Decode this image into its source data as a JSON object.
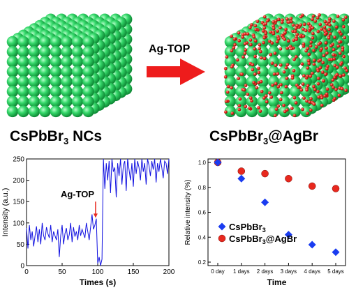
{
  "scheme": {
    "left_label_main": "CsPbBr",
    "left_label_sub": "3",
    "left_label_tail": " NCs",
    "right_label_main": "CsPbBr",
    "right_label_sub": "3",
    "right_label_tail": "@AgBr",
    "arrow_label": "Ag-TOP",
    "colors": {
      "sphere": "#35d86a",
      "sphere_dark": "#0f8a36",
      "red_dot": "#e8281e",
      "arrow": "#ee1c1c"
    }
  },
  "chart_data": [
    {
      "type": "line",
      "title": "",
      "xlabel": "Times (s)",
      "ylabel": "Intensity (a.u.)",
      "xlim": [
        0,
        200
      ],
      "ylim": [
        0,
        250
      ],
      "xticks": [
        0,
        50,
        100,
        150,
        200
      ],
      "yticks": [
        0,
        50,
        100,
        150,
        200,
        250
      ],
      "series_color": "#1010e0",
      "annotation": {
        "text": "Ag-TOP",
        "x": 97,
        "color": "#e8281e"
      },
      "x": [
        0,
        2,
        4,
        6,
        8,
        10,
        12,
        14,
        16,
        18,
        20,
        22,
        24,
        26,
        28,
        30,
        32,
        34,
        36,
        38,
        40,
        42,
        44,
        46,
        48,
        50,
        52,
        54,
        56,
        58,
        60,
        62,
        64,
        66,
        68,
        70,
        72,
        74,
        76,
        78,
        80,
        82,
        84,
        86,
        88,
        90,
        92,
        94,
        96,
        98,
        100,
        102,
        104,
        106,
        108,
        110,
        112,
        114,
        116,
        118,
        120,
        122,
        124,
        126,
        128,
        130,
        132,
        134,
        136,
        138,
        140,
        142,
        144,
        146,
        148,
        150,
        152,
        154,
        156,
        158,
        160,
        162,
        164,
        166,
        168,
        170,
        172,
        174,
        176,
        178,
        180,
        182,
        184,
        186,
        188,
        190,
        192,
        194,
        196,
        198,
        200
      ],
      "y": [
        88,
        40,
        95,
        60,
        80,
        45,
        70,
        92,
        55,
        85,
        50,
        100,
        70,
        60,
        90,
        75,
        65,
        95,
        55,
        80,
        70,
        60,
        85,
        20,
        70,
        95,
        50,
        75,
        88,
        60,
        72,
        100,
        55,
        90,
        68,
        80,
        60,
        95,
        70,
        85,
        75,
        65,
        100,
        80,
        60,
        90,
        120,
        85,
        95,
        110,
        5,
        20,
        0,
        15,
        250,
        180,
        240,
        200,
        245,
        170,
        250,
        220,
        230,
        160,
        240,
        210,
        250,
        190,
        235,
        245,
        175,
        250,
        225,
        200,
        240,
        185,
        250,
        215,
        245,
        230,
        200,
        250,
        220,
        240,
        190,
        250,
        235,
        210,
        245,
        225,
        250,
        195,
        240,
        220,
        250,
        230,
        205,
        245,
        240,
        215,
        250
      ]
    },
    {
      "type": "scatter",
      "title": "",
      "xlabel": "Time",
      "ylabel": "Relative intensity (%)",
      "categories": [
        "0 day",
        "1 days",
        "2 days",
        "3 days",
        "4 days",
        "5 days"
      ],
      "ylim": [
        0.2,
        1.0
      ],
      "yticks": [
        0.2,
        0.4,
        0.6,
        0.8,
        1.0
      ],
      "legend": "bottom-right",
      "series": [
        {
          "name": "CsPbBr3",
          "name_main": "CsPbBr",
          "name_sub": "3",
          "name_tail": "",
          "marker": "diamond",
          "color": "#1a3cf0",
          "values": [
            1.0,
            0.87,
            0.68,
            0.42,
            0.34,
            0.28
          ]
        },
        {
          "name": "CsPbBr3@AgBr",
          "name_main": "CsPbBr",
          "name_sub": "3",
          "name_tail": "@AgBr",
          "marker": "circle",
          "color": "#e8281e",
          "values": [
            1.0,
            0.93,
            0.91,
            0.87,
            0.81,
            0.79
          ]
        }
      ]
    }
  ]
}
